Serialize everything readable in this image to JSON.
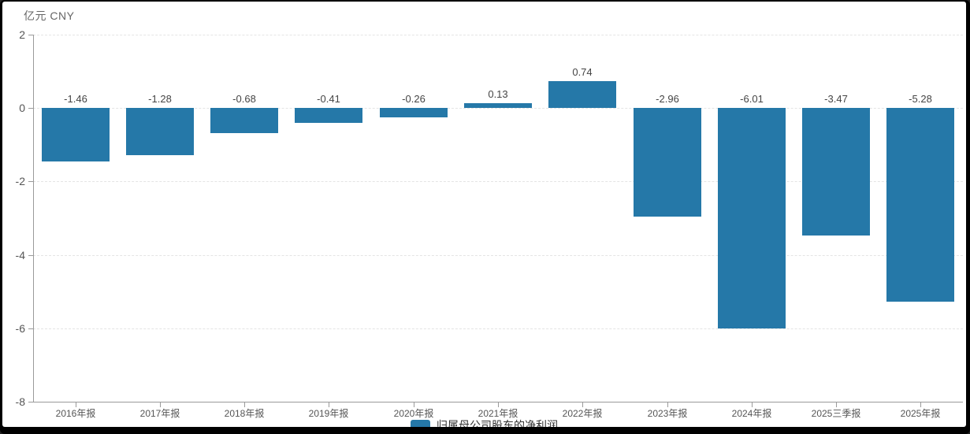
{
  "chart_data": {
    "type": "bar",
    "unit_label": "亿元 CNY",
    "series_name": "归属母公司股东的净利润",
    "categories": [
      "2016年报",
      "2017年报",
      "2018年报",
      "2019年报",
      "2020年报",
      "2021年报",
      "2022年报",
      "2023年报",
      "2024年报",
      "2025三季报",
      "2025年报"
    ],
    "values": [
      -1.46,
      -1.28,
      -0.68,
      -0.41,
      -0.26,
      0.13,
      0.74,
      -2.96,
      -6.01,
      -3.47,
      -5.28
    ],
    "value_labels": [
      "-1.46",
      "-1.28",
      "-0.68",
      "-0.41",
      "-0.26",
      "0.13",
      "0.74",
      "-2.96",
      "-6.01",
      "-3.47",
      "-5.28"
    ],
    "ylim": [
      -8,
      2
    ],
    "y_ticks": [
      2,
      0,
      -2,
      -4,
      -6,
      -8
    ],
    "grid": "dashed",
    "legend_position": "bottom-center",
    "bar_color": "#2578a8",
    "axis_color": "#9a9a9a",
    "gridline_color": "#e4e4e4"
  }
}
